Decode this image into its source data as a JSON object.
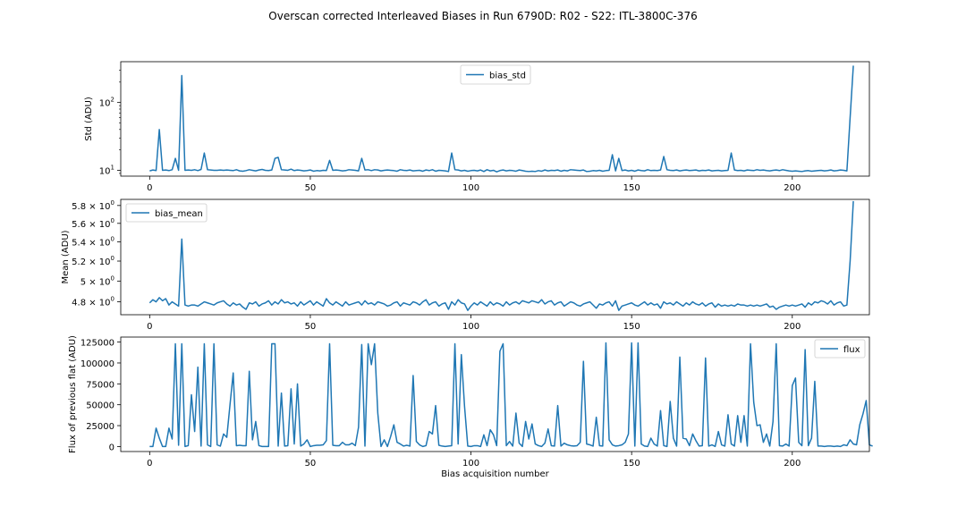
{
  "figure": {
    "title": "Overscan corrected Interleaved Biases in Run 6790D: R02 - S22: ITL-3800C-376"
  },
  "chart_data": [
    {
      "type": "line",
      "ylabel": "Std (ADU)",
      "xlabel": "",
      "yscale": "log",
      "xlim": [
        -9,
        224
      ],
      "ylim": [
        8.2,
        400
      ],
      "xticks": [
        0,
        50,
        100,
        150,
        200
      ],
      "xtick_labels": [
        "0",
        "50",
        "100",
        "150",
        "200"
      ],
      "yticks": [
        10,
        100
      ],
      "ytick_labels": [
        "10¹",
        "10²"
      ],
      "legend": {
        "position": "upper-center",
        "entries": [
          "bias_std"
        ]
      },
      "color": "#1f77b4",
      "series": [
        {
          "name": "bias_std",
          "x_start": 0,
          "x_step": 1,
          "values": [
            9.8,
            10.1,
            9.9,
            40,
            10.0,
            10.1,
            9.9,
            10.2,
            15,
            10.0,
            250,
            10.0,
            10.1,
            10.0,
            10.2,
            9.9,
            10.3,
            18,
            10.2,
            10.1,
            10.0,
            10.0,
            10.1,
            10.0,
            10.1,
            10.0,
            9.9,
            10.2,
            9.8,
            9.7,
            9.9,
            10.2,
            10.0,
            9.8,
            10.1,
            10.3,
            10.0,
            9.9,
            10.1,
            15,
            15.5,
            10.2,
            10.1,
            10.0,
            10.4,
            9.9,
            10.1,
            10.0,
            9.8,
            9.9,
            10.1,
            9.7,
            9.9,
            9.8,
            10.0,
            9.9,
            14,
            10.0,
            10.1,
            10.0,
            9.8,
            9.9,
            10.2,
            10.1,
            10.0,
            9.8,
            15,
            10.1,
            10.2,
            9.9,
            10.2,
            10.1,
            9.8,
            10.0,
            10.1,
            10.0,
            9.9,
            9.7,
            10.2,
            10.0,
            9.9,
            10.1,
            9.8,
            9.9,
            10.0,
            9.7,
            10.1,
            9.9,
            10.2,
            9.7,
            10.0,
            9.9,
            9.8,
            9.6,
            18,
            10.2,
            10.1,
            9.8,
            10.0,
            9.7,
            9.9,
            10.0,
            9.8,
            10.1,
            9.6,
            10.2,
            9.8,
            10.0,
            9.5,
            9.9,
            10.1,
            9.8,
            10.0,
            9.9,
            9.7,
            10.1,
            9.9,
            9.7,
            9.6,
            9.7,
            9.6,
            9.9,
            9.7,
            10.1,
            9.8,
            10.0,
            9.9,
            10.1,
            9.7,
            10.0,
            9.8,
            10.2,
            10.1,
            10.0,
            9.9,
            10.1,
            9.6,
            9.7,
            9.9,
            9.8,
            10.0,
            9.7,
            9.9,
            10.0,
            17,
            9.8,
            15,
            9.9,
            10.1,
            9.8,
            10.0,
            9.7,
            10.1,
            9.9,
            9.8,
            10.2,
            9.9,
            10.0,
            9.9,
            10.1,
            16,
            10.2,
            10.0,
            9.9,
            10.1,
            9.8,
            10.0,
            10.1,
            9.9,
            10.0,
            10.1,
            9.8,
            10.0,
            9.9,
            10.1,
            9.8,
            9.9,
            10.0,
            9.8,
            9.9,
            10.0,
            18,
            10.1,
            9.9,
            10.0,
            9.8,
            10.1,
            10.0,
            9.9,
            10.2,
            10.0,
            10.1,
            9.9,
            9.8,
            10.0,
            10.1,
            9.9,
            10.2,
            10.0,
            9.8,
            9.7,
            9.8,
            9.7,
            9.6,
            9.8,
            9.9,
            9.7,
            9.8,
            9.9,
            10.0,
            9.8,
            9.9,
            10.1,
            9.8,
            9.9,
            10.1,
            10.0,
            9.8,
            60,
            350
          ]
        }
      ]
    },
    {
      "type": "line",
      "ylabel": "Mean (ADU)",
      "xlabel": "",
      "yscale": "log",
      "xlim": [
        -9,
        224
      ],
      "ylim": [
        4.68,
        5.87
      ],
      "xticks": [
        0,
        50,
        100,
        150,
        200
      ],
      "xtick_labels": [
        "0",
        "50",
        "100",
        "150",
        "200"
      ],
      "yticks": [
        4.8,
        5.0,
        5.2,
        5.4,
        5.6,
        5.8
      ],
      "ytick_labels": [
        "4.8 × 10⁰",
        "5 × 10⁰",
        "5.2 × 10⁰",
        "5.4 × 10⁰",
        "5.6 × 10⁰",
        "5.8 × 10⁰"
      ],
      "legend": {
        "position": "upper-left",
        "entries": [
          "bias_mean"
        ]
      },
      "color": "#1f77b4",
      "series": [
        {
          "name": "bias_mean",
          "x_start": 0,
          "x_step": 1,
          "values": [
            4.79,
            4.82,
            4.8,
            4.84,
            4.81,
            4.83,
            4.77,
            4.8,
            4.78,
            4.76,
            5.43,
            4.77,
            4.76,
            4.77,
            4.77,
            4.76,
            4.78,
            4.8,
            4.79,
            4.78,
            4.77,
            4.79,
            4.8,
            4.81,
            4.78,
            4.76,
            4.79,
            4.77,
            4.78,
            4.75,
            4.73,
            4.79,
            4.78,
            4.8,
            4.76,
            4.78,
            4.79,
            4.81,
            4.77,
            4.8,
            4.78,
            4.82,
            4.79,
            4.8,
            4.78,
            4.79,
            4.76,
            4.8,
            4.77,
            4.79,
            4.81,
            4.77,
            4.8,
            4.78,
            4.76,
            4.83,
            4.79,
            4.77,
            4.8,
            4.78,
            4.76,
            4.8,
            4.77,
            4.78,
            4.79,
            4.8,
            4.77,
            4.81,
            4.78,
            4.79,
            4.77,
            4.8,
            4.79,
            4.78,
            4.76,
            4.77,
            4.79,
            4.8,
            4.76,
            4.79,
            4.78,
            4.77,
            4.8,
            4.79,
            4.77,
            4.8,
            4.82,
            4.77,
            4.79,
            4.8,
            4.76,
            4.78,
            4.79,
            4.73,
            4.8,
            4.77,
            4.82,
            4.79,
            4.78,
            4.72,
            4.76,
            4.79,
            4.77,
            4.8,
            4.78,
            4.76,
            4.8,
            4.77,
            4.79,
            4.78,
            4.76,
            4.8,
            4.77,
            4.79,
            4.8,
            4.78,
            4.81,
            4.8,
            4.79,
            4.81,
            4.8,
            4.79,
            4.82,
            4.78,
            4.8,
            4.81,
            4.77,
            4.79,
            4.8,
            4.76,
            4.78,
            4.8,
            4.79,
            4.77,
            4.76,
            4.78,
            4.79,
            4.8,
            4.77,
            4.74,
            4.78,
            4.77,
            4.79,
            4.8,
            4.76,
            4.81,
            4.72,
            4.76,
            4.77,
            4.78,
            4.79,
            4.77,
            4.76,
            4.78,
            4.8,
            4.77,
            4.79,
            4.77,
            4.78,
            4.74,
            4.8,
            4.78,
            4.79,
            4.77,
            4.8,
            4.78,
            4.76,
            4.79,
            4.77,
            4.8,
            4.78,
            4.77,
            4.79,
            4.76,
            4.78,
            4.79,
            4.75,
            4.78,
            4.76,
            4.77,
            4.76,
            4.77,
            4.76,
            4.78,
            4.77,
            4.77,
            4.76,
            4.77,
            4.76,
            4.77,
            4.76,
            4.77,
            4.78,
            4.75,
            4.76,
            4.73,
            4.75,
            4.76,
            4.77,
            4.76,
            4.77,
            4.76,
            4.77,
            4.78,
            4.75,
            4.79,
            4.77,
            4.8,
            4.79,
            4.81,
            4.8,
            4.78,
            4.81,
            4.77,
            4.79,
            4.8,
            4.76,
            4.77,
            5.2,
            5.85
          ]
        }
      ]
    },
    {
      "type": "line",
      "ylabel": "Flux of previous flat (ADU)",
      "xlabel": "Bias acquisition number",
      "yscale": "linear",
      "xlim": [
        -9,
        224
      ],
      "ylim": [
        -6000,
        131000
      ],
      "xticks": [
        0,
        50,
        100,
        150,
        200
      ],
      "xtick_labels": [
        "0",
        "50",
        "100",
        "150",
        "200"
      ],
      "yticks": [
        0,
        25000,
        50000,
        75000,
        100000,
        125000
      ],
      "ytick_labels": [
        "0",
        "25000",
        "50000",
        "75000",
        "100000",
        "125000"
      ],
      "legend": {
        "position": "upper-right",
        "entries": [
          "flux"
        ]
      },
      "color": "#1f77b4",
      "series": [
        {
          "name": "flux",
          "x_start": 0,
          "x_step": 1,
          "values": [
            0,
            0,
            22000,
            10000,
            0,
            0,
            22000,
            9000,
            123000,
            1500,
            123000,
            0,
            1000,
            62000,
            18000,
            95000,
            500,
            123000,
            2000,
            0,
            123000,
            2000,
            500,
            15000,
            11000,
            50000,
            88000,
            1000,
            1500,
            1000,
            1000,
            90000,
            8000,
            30000,
            1000,
            0,
            0,
            0,
            123000,
            123000,
            500,
            64000,
            500,
            1000,
            69000,
            3000,
            75000,
            500,
            3000,
            8000,
            0,
            1000,
            1500,
            1500,
            2000,
            7000,
            123000,
            1500,
            1000,
            1000,
            5000,
            2000,
            2000,
            4000,
            1000,
            23000,
            122000,
            500,
            123000,
            98000,
            123000,
            40000,
            0,
            8000,
            0,
            12000,
            26000,
            5000,
            3000,
            500,
            1500,
            500,
            85000,
            6000,
            2000,
            0,
            1000,
            18000,
            15000,
            49000,
            1500,
            500,
            0,
            500,
            1000,
            123000,
            3000,
            110000,
            48000,
            500,
            0,
            1000,
            1000,
            0,
            14000,
            1000,
            20000,
            14000,
            1000,
            114000,
            123000,
            1000,
            6000,
            500,
            40000,
            4000,
            0,
            30000,
            9000,
            27000,
            3000,
            1000,
            0,
            4000,
            21000,
            1000,
            500,
            49000,
            500,
            4000,
            2000,
            1000,
            500,
            1000,
            5000,
            102000,
            3000,
            2000,
            500,
            35000,
            1000,
            500,
            124000,
            8000,
            2000,
            500,
            1000,
            2000,
            5000,
            15000,
            124000,
            500,
            124000,
            3000,
            500,
            0,
            10000,
            3000,
            500,
            43000,
            1000,
            0,
            54000,
            10000,
            500,
            107000,
            10000,
            9000,
            1000,
            15000,
            7000,
            500,
            1000,
            106000,
            500,
            2000,
            100,
            18000,
            2000,
            500,
            38000,
            3000,
            500,
            37000,
            5000,
            37000,
            500,
            123000,
            53000,
            25000,
            26000,
            5000,
            15000,
            500,
            30000,
            123000,
            1000,
            500,
            3000,
            500,
            73000,
            82000,
            5000,
            1000,
            116000,
            1000,
            10000,
            78000,
            500,
            500,
            0,
            500,
            500,
            0,
            500,
            0,
            2000,
            1000,
            8000,
            3000,
            2000,
            26000,
            39000,
            55000,
            2000,
            500
          ]
        }
      ]
    }
  ]
}
